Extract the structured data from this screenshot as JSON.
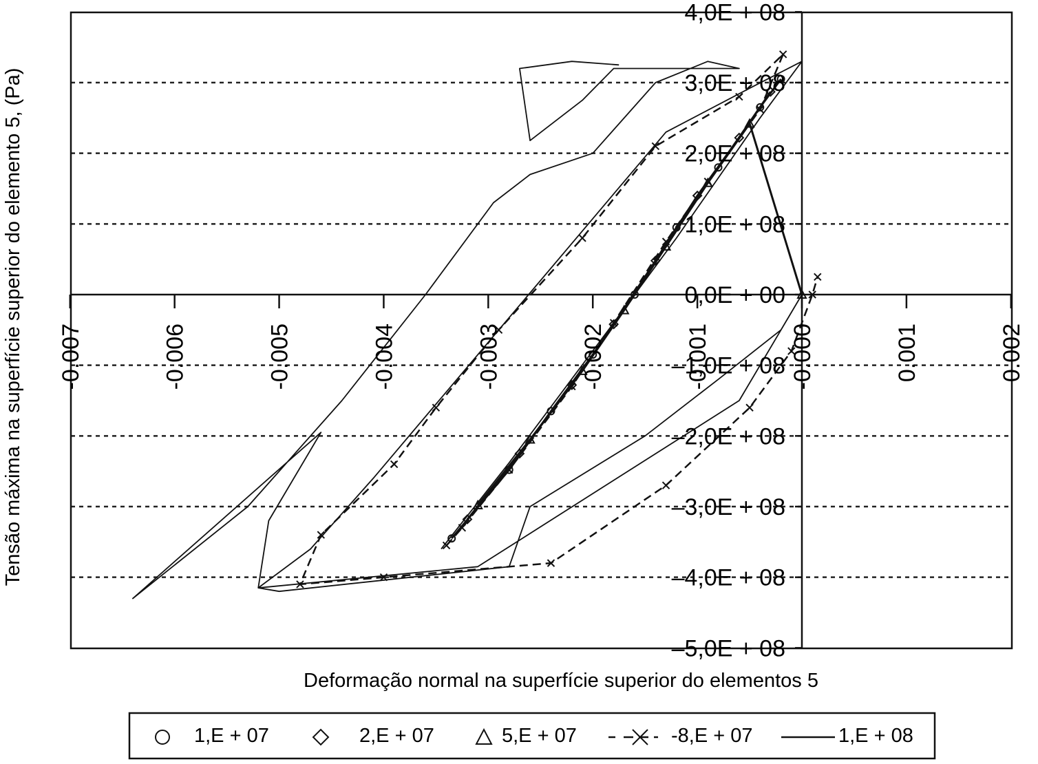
{
  "chart_data": {
    "type": "line",
    "title": "",
    "xlabel": "Deformação normal na superfície superior do elementos 5",
    "ylabel": "Tensão máxima na superfície superior do elemento 5, (Pa)",
    "xlim": [
      -0.007,
      0.002
    ],
    "ylim": [
      -500000000,
      400000000
    ],
    "x_ticks": [
      -0.007,
      -0.006,
      -0.005,
      -0.004,
      -0.003,
      -0.002,
      -0.001,
      0.0,
      0.001,
      0.002
    ],
    "x_tick_labels": [
      "-0.007",
      "-0.006",
      "-0.005",
      "-0.004",
      "-0.003",
      "-0.002",
      "-0.001",
      "-0.000",
      "0.001",
      "0.002"
    ],
    "y_ticks": [
      400000000,
      300000000,
      200000000,
      100000000,
      0,
      -100000000,
      -200000000,
      -300000000,
      -400000000,
      -500000000
    ],
    "y_tick_labels": [
      "4,0E + 08",
      "3,0E + 08",
      "2,0E + 08",
      "1,0E + 08",
      "0,0E + 00",
      "–1,0E + 08",
      "–2,0E + 08",
      "–3,0E + 08",
      "–4,0E + 08",
      "–5,0E + 08"
    ],
    "grid": "horizontal dotted",
    "legend_position": "bottom",
    "series": [
      {
        "name": "1,E + 07",
        "marker": "circle",
        "style": "markers",
        "points": [
          [
            -0.00335,
            -345000000
          ],
          [
            -0.0028,
            -248000000
          ],
          [
            -0.0024,
            -165000000
          ],
          [
            -0.002,
            -85000000
          ],
          [
            -0.0016,
            0
          ],
          [
            -0.0012,
            95000000
          ],
          [
            -0.0008,
            180000000
          ],
          [
            -0.0004,
            265000000
          ],
          [
            -0.0002,
            305000000
          ]
        ]
      },
      {
        "name": "2,E + 07",
        "marker": "diamond",
        "style": "markers",
        "points": [
          [
            -0.0032,
            -318000000
          ],
          [
            -0.0027,
            -225000000
          ],
          [
            -0.0022,
            -128000000
          ],
          [
            -0.0018,
            -42000000
          ],
          [
            -0.0014,
            48000000
          ],
          [
            -0.001,
            140000000
          ],
          [
            -0.0006,
            222000000
          ],
          [
            -0.0003,
            287000000
          ]
        ]
      },
      {
        "name": "5,E + 07",
        "marker": "triangle",
        "style": "markers",
        "points": [
          [
            -0.0031,
            -298000000
          ],
          [
            -0.0026,
            -205000000
          ],
          [
            -0.0021,
            -108000000
          ],
          [
            -0.0017,
            -22000000
          ],
          [
            -0.0013,
            68000000
          ],
          [
            -0.0009,
            158000000
          ],
          [
            -0.0005,
            242000000
          ],
          [
            0.0,
            0
          ]
        ]
      },
      {
        "name": "-8,E + 07",
        "marker": "x",
        "style": "dashed",
        "points": [
          [
            -0.0034,
            -355000000
          ],
          [
            -0.00325,
            -330000000
          ],
          [
            -0.0028,
            -248000000
          ],
          [
            -0.0022,
            -130000000
          ],
          [
            -0.0018,
            -40000000
          ],
          [
            -0.0013,
            75000000
          ],
          [
            -0.0009,
            160000000
          ],
          [
            -0.0004,
            262000000
          ],
          [
            -0.00018,
            340000000
          ],
          [
            -0.0006,
            280000000
          ],
          [
            -0.0014,
            210000000
          ],
          [
            -0.0021,
            80000000
          ],
          [
            -0.0029,
            -50000000
          ],
          [
            -0.0035,
            -160000000
          ],
          [
            -0.0039,
            -240000000
          ],
          [
            -0.0046,
            -340000000
          ],
          [
            -0.0048,
            -410000000
          ],
          [
            -0.004,
            -400000000
          ],
          [
            -0.0024,
            -380000000
          ],
          [
            -0.0013,
            -270000000
          ],
          [
            -0.0005,
            -160000000
          ],
          [
            -0.0001,
            -80000000
          ],
          [
            0.0001,
            0
          ],
          [
            0.00015,
            25000000
          ]
        ]
      },
      {
        "name": "1,E + 08",
        "marker": "none",
        "style": "solid",
        "points": [
          [
            -0.00345,
            -360000000
          ],
          [
            -0.0028,
            -238000000
          ],
          [
            -0.0018,
            -40000000
          ],
          [
            -0.0012,
            80000000
          ],
          [
            -0.0004,
            250000000
          ],
          [
            0.0,
            330000000
          ],
          [
            -0.0005,
            292000000
          ],
          [
            -0.0013,
            230000000
          ],
          [
            -0.0025,
            20000000
          ],
          [
            -0.0033,
            -120000000
          ],
          [
            -0.0041,
            -260000000
          ],
          [
            -0.0047,
            -360000000
          ],
          [
            -0.0052,
            -415000000
          ],
          [
            -0.0031,
            -385000000
          ],
          [
            -0.0006,
            -150000000
          ],
          [
            0.0,
            0
          ],
          [
            -0.0002,
            -50000000
          ],
          [
            -0.0008,
            -120000000
          ],
          [
            -0.0015,
            -200000000
          ],
          [
            -0.0026,
            -300000000
          ],
          [
            -0.0028,
            -385000000
          ],
          [
            -0.005,
            -420000000
          ],
          [
            -0.0052,
            -415000000
          ],
          [
            -0.0051,
            -320000000
          ],
          [
            -0.0046,
            -195000000
          ],
          [
            -0.0064,
            -430000000
          ],
          [
            -0.0053,
            -300000000
          ],
          [
            -0.0044,
            -150000000
          ],
          [
            -0.0036,
            0
          ],
          [
            -0.00295,
            130000000
          ],
          [
            -0.0026,
            170000000
          ],
          [
            -0.002,
            200000000
          ],
          [
            -0.0014,
            300000000
          ],
          [
            -0.0009,
            330000000
          ],
          [
            -0.0006,
            320000000
          ],
          [
            -0.0018,
            320000000
          ],
          [
            -0.0021,
            275000000
          ],
          [
            -0.0026,
            218000000
          ],
          [
            -0.0027,
            320000000
          ],
          [
            -0.0022,
            330000000
          ],
          [
            -0.00175,
            325000000
          ]
        ]
      }
    ]
  }
}
